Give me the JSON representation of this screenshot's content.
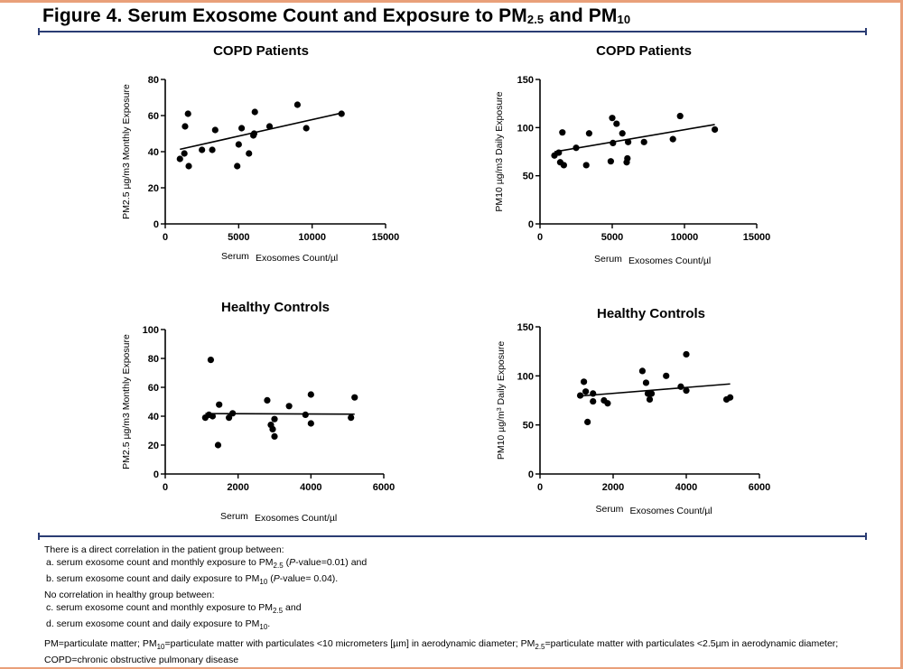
{
  "figure_title": "Figure 4. Serum Exosome Count and Exposure to PM",
  "figure_title_sub1": "2.5",
  "figure_title_mid": " and PM",
  "figure_title_sub2": "10",
  "colors": {
    "rule": "#2a3c73",
    "frame": "#e9a07a",
    "points": "#000000"
  },
  "chart_data": [
    {
      "type": "scatter",
      "title": "COPD Patients",
      "xlabel_a": "Serum",
      "xlabel_b": "Exosomes Count/µl",
      "ylabel": "PM2.5 µg/m3 Monthly Exposure",
      "xlim": [
        0,
        15000
      ],
      "ylim": [
        0,
        80
      ],
      "xticks": [
        0,
        5000,
        10000,
        15000
      ],
      "yticks": [
        0,
        20,
        40,
        60,
        80
      ],
      "points": [
        [
          1000,
          36
        ],
        [
          1300,
          39
        ],
        [
          1350,
          54
        ],
        [
          1550,
          61
        ],
        [
          1600,
          32
        ],
        [
          2500,
          41
        ],
        [
          3200,
          41
        ],
        [
          3400,
          52
        ],
        [
          4900,
          32
        ],
        [
          5000,
          44
        ],
        [
          5200,
          53
        ],
        [
          5700,
          39
        ],
        [
          6000,
          49
        ],
        [
          6100,
          62
        ],
        [
          6050,
          50
        ],
        [
          7100,
          54
        ],
        [
          9000,
          66
        ],
        [
          9600,
          53
        ],
        [
          12000,
          61
        ]
      ],
      "fit": [
        [
          1000,
          41.3
        ],
        [
          12000,
          61.4
        ]
      ]
    },
    {
      "type": "scatter",
      "title": "COPD Patients",
      "xlabel_a": "Serum",
      "xlabel_b": "Exosomes Count/µl",
      "ylabel": "PM10 µg/m3 Daily Exposure",
      "xlim": [
        0,
        15000
      ],
      "ylim": [
        0,
        150
      ],
      "xticks": [
        0,
        5000,
        10000,
        15000
      ],
      "yticks": [
        0,
        50,
        100,
        150
      ],
      "points": [
        [
          1000,
          71
        ],
        [
          1300,
          74
        ],
        [
          1400,
          64
        ],
        [
          1550,
          95
        ],
        [
          1650,
          61
        ],
        [
          2500,
          79
        ],
        [
          3200,
          61
        ],
        [
          3400,
          94
        ],
        [
          4900,
          65
        ],
        [
          5000,
          110
        ],
        [
          5050,
          84
        ],
        [
          5300,
          104
        ],
        [
          5700,
          94
        ],
        [
          6000,
          64
        ],
        [
          6050,
          68
        ],
        [
          6100,
          85
        ],
        [
          7200,
          85
        ],
        [
          9200,
          88
        ],
        [
          9700,
          112
        ],
        [
          12100,
          98
        ]
      ],
      "fit": [
        [
          1000,
          74.8
        ],
        [
          12100,
          103.2
        ]
      ]
    },
    {
      "type": "scatter",
      "title": "Healthy Controls",
      "xlabel_a": "Serum",
      "xlabel_b": "Exosomes Count/µl",
      "ylabel": "PM2.5 µg/m3 Monthly Exposure",
      "xlim": [
        0,
        6000
      ],
      "ylim": [
        0,
        100
      ],
      "xticks": [
        0,
        2000,
        4000,
        6000
      ],
      "yticks": [
        0,
        20,
        40,
        60,
        80,
        100
      ],
      "points": [
        [
          1100,
          39
        ],
        [
          1200,
          41
        ],
        [
          1250,
          79
        ],
        [
          1300,
          40
        ],
        [
          1450,
          20
        ],
        [
          1480,
          48
        ],
        [
          1750,
          39
        ],
        [
          1850,
          42
        ],
        [
          2800,
          51
        ],
        [
          2900,
          34
        ],
        [
          2950,
          31
        ],
        [
          3000,
          26
        ],
        [
          3000,
          38
        ],
        [
          3400,
          47
        ],
        [
          3850,
          41
        ],
        [
          4000,
          55
        ],
        [
          4000,
          35
        ],
        [
          5100,
          39
        ],
        [
          5200,
          53
        ]
      ],
      "fit": [
        [
          1100,
          41.8
        ],
        [
          5200,
          41.4
        ]
      ]
    },
    {
      "type": "scatter",
      "title": "Healthy Controls",
      "xlabel_a": "Serum",
      "xlabel_b": "Exosomes Count/µl",
      "ylabel": "PM10 µg/m",
      "ylabel_sup": "3",
      "ylabel_tail": " Daily Exposure",
      "xlim": [
        0,
        6000
      ],
      "ylim": [
        0,
        150
      ],
      "xticks": [
        0,
        2000,
        4000,
        6000
      ],
      "yticks": [
        0,
        50,
        100,
        150
      ],
      "points": [
        [
          1100,
          80
        ],
        [
          1200,
          94
        ],
        [
          1250,
          84
        ],
        [
          1300,
          53
        ],
        [
          1450,
          82
        ],
        [
          1450,
          74
        ],
        [
          1750,
          75
        ],
        [
          1850,
          72
        ],
        [
          2800,
          105
        ],
        [
          2900,
          93
        ],
        [
          2950,
          82
        ],
        [
          3000,
          76
        ],
        [
          3050,
          82
        ],
        [
          3450,
          100
        ],
        [
          3850,
          89
        ],
        [
          4000,
          85
        ],
        [
          4000,
          122
        ],
        [
          5100,
          76
        ],
        [
          5200,
          78
        ]
      ],
      "fit": [
        [
          1100,
          79.5
        ],
        [
          5200,
          91.8
        ]
      ]
    }
  ],
  "notes": {
    "line1": "There is a direct correlation in the patient group between:",
    "line2a": "a. serum exosome count and monthly exposure to PM",
    "line2b": "2.5",
    "line2c": " (",
    "line2d": "P",
    "line2e": "-value=0.01) and",
    "line3a": "b. serum exosome count and daily exposure to PM",
    "line3b": "10",
    "line3c": " (",
    "line3d": "P",
    "line3e": "-value= 0.04).",
    "line4": "No correlation in healthy group between:",
    "line5a": "c. serum exosome count and monthly exposure to PM",
    "line5b": "2.5",
    "line5c": " and",
    "line6a": "d. serum exosome count and daily exposure to PM",
    "line6b": "10",
    "line6c": "."
  },
  "abbreviations": {
    "a": "PM=particulate matter; PM",
    "b": "10",
    "c": "=particulate matter with particulates <10 micrometers [µm] in aerodynamic diameter; PM",
    "d": "2.5",
    "e": "=particulate matter with particulates <2.5µm in aerodynamic diameter; COPD=chronic obstructive pulmonary disease"
  }
}
